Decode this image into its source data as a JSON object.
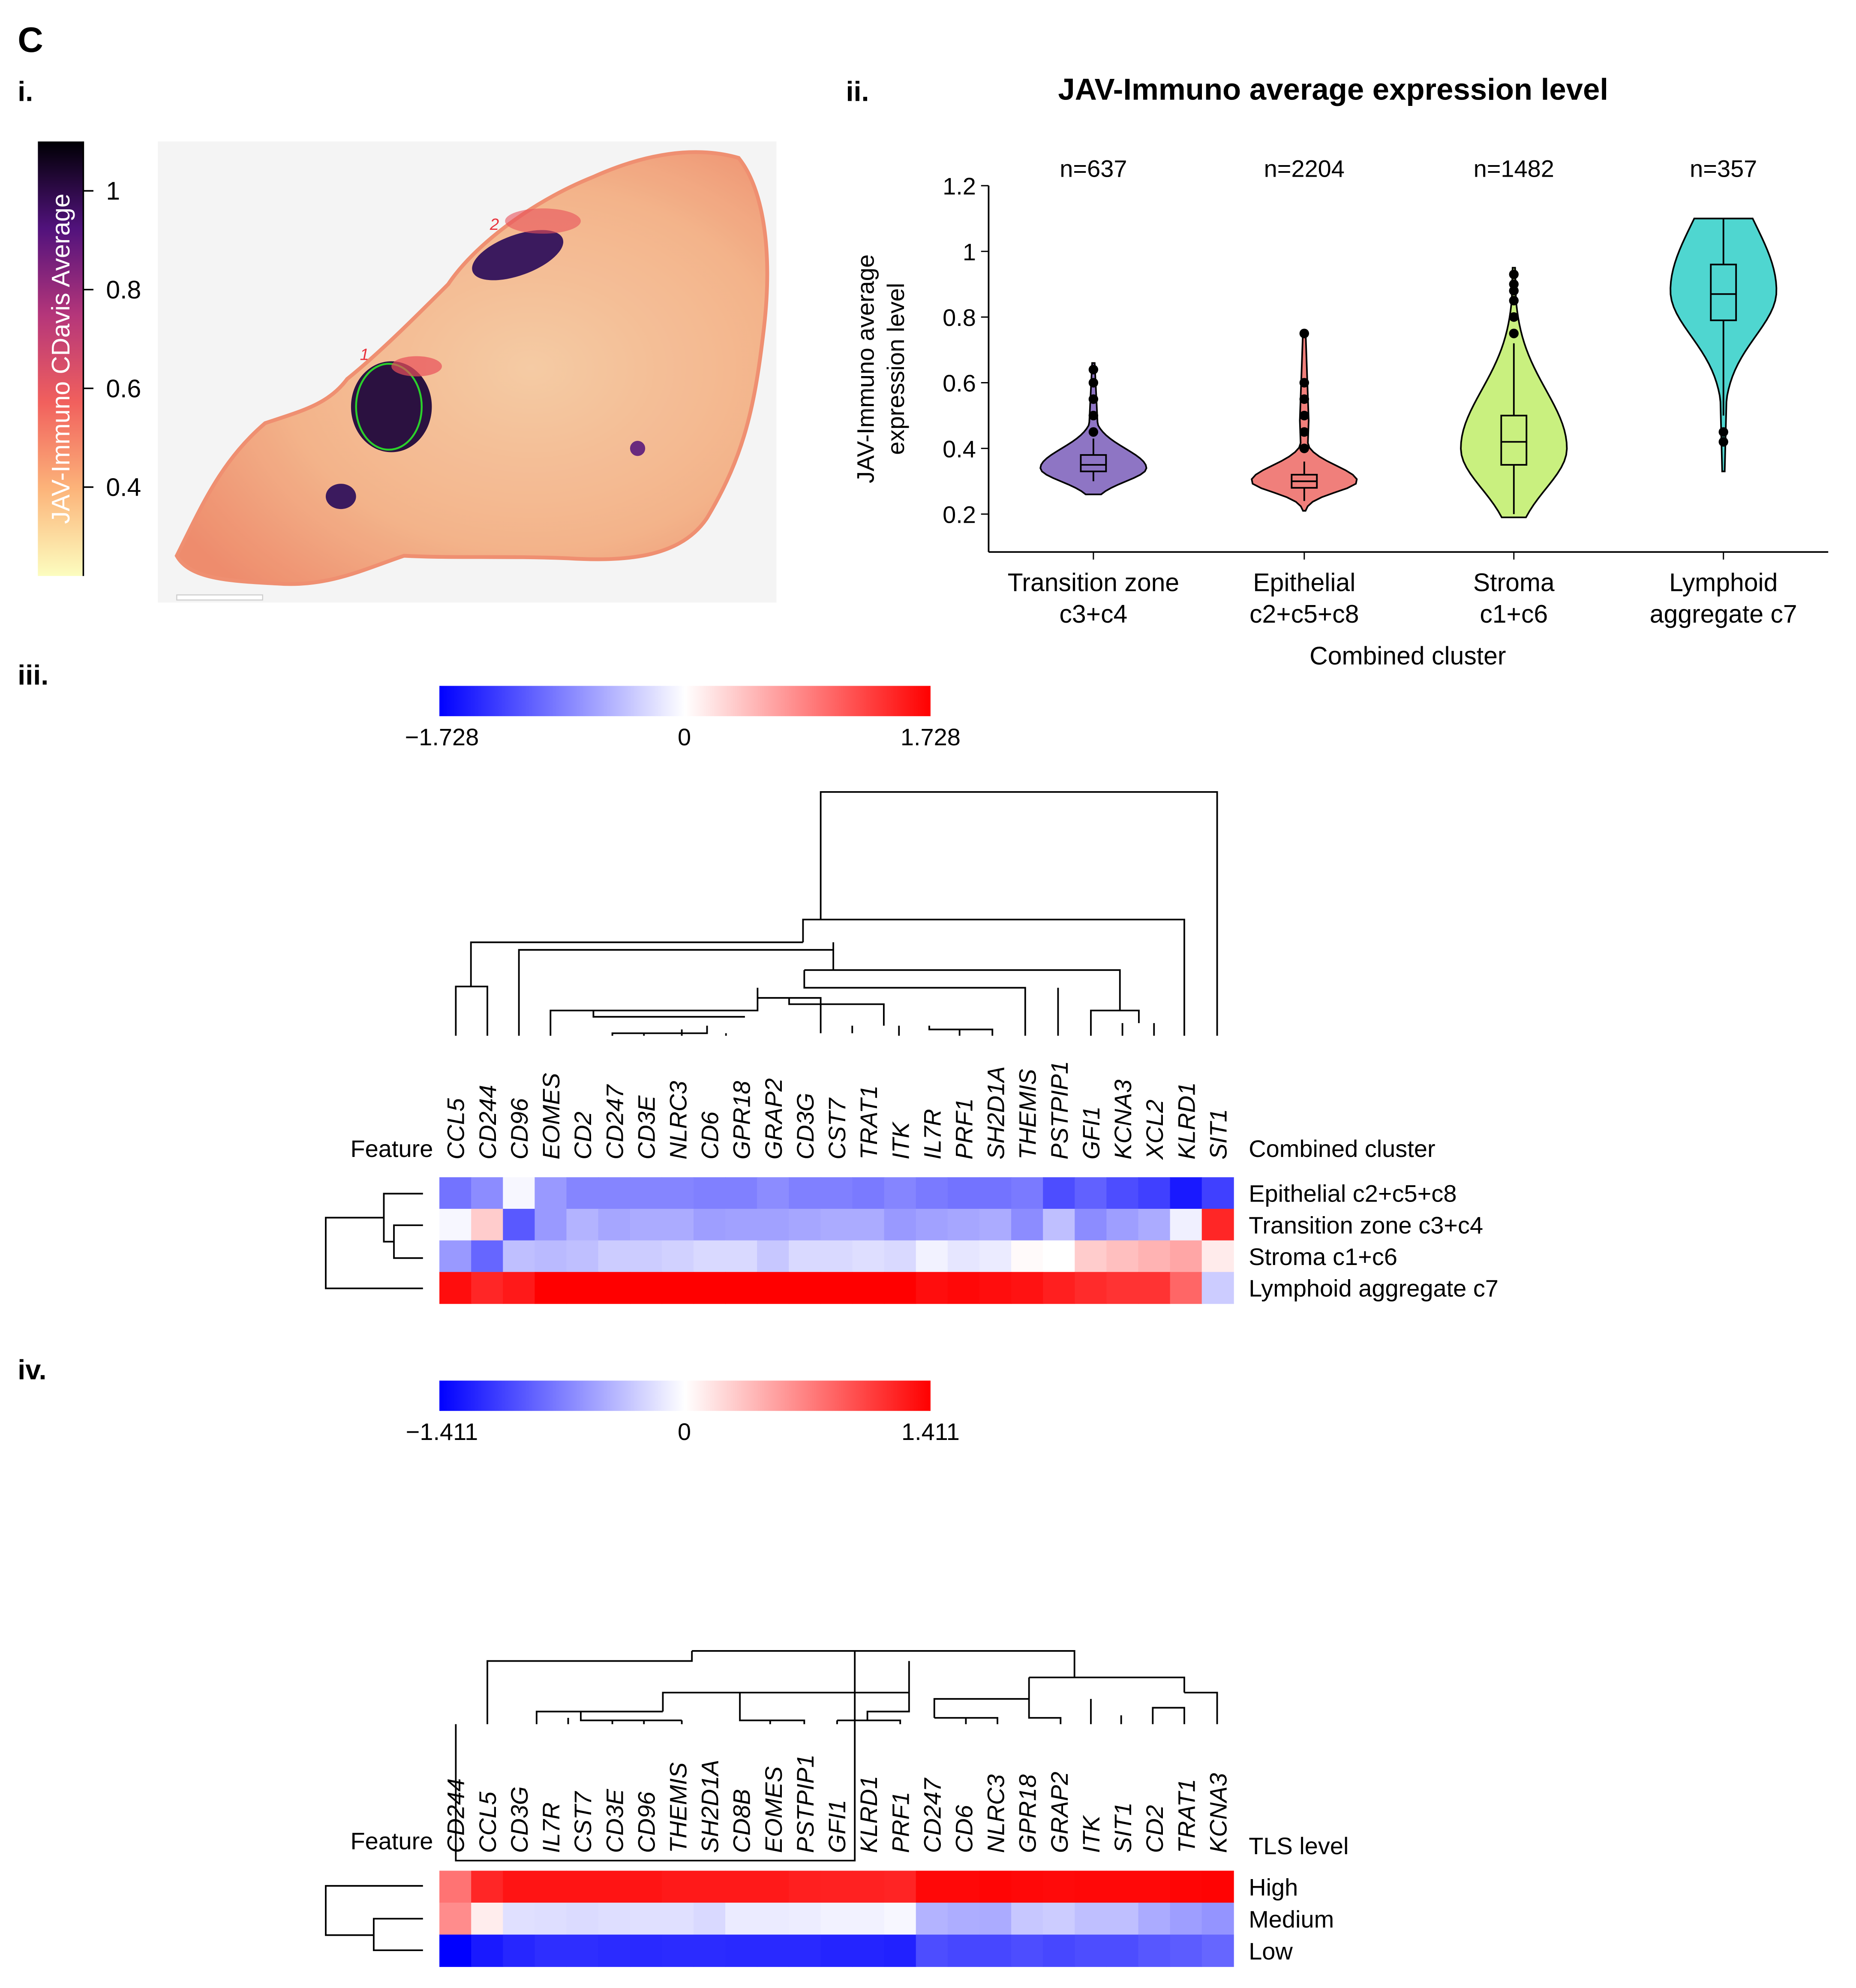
{
  "figure_label": "C",
  "panels": {
    "i": "i.",
    "ii": "ii.",
    "iii": "iii.",
    "iv": "iv."
  },
  "panel_i": {
    "colorbar_title": "JAV-Immuno CDavis Average",
    "colorbar_ticks": [
      "1",
      "0.8",
      "0.6",
      "0.4"
    ],
    "colorbar_tick_values": [
      1,
      0.8,
      0.6,
      0.4
    ],
    "colorbar_range": [
      0.22,
      1.1
    ],
    "annotations": [
      "1",
      "2"
    ],
    "colors": {
      "low": "#fcfdbf",
      "mid": "#f1605d",
      "high": "#000004",
      "roi_outline": "#2bd12b",
      "annotation": "#e8323c"
    }
  },
  "chart_data": [
    {
      "type": "violin",
      "title": "JAV-Immuno average expression level",
      "xlabel": "Combined cluster",
      "ylabel": [
        "JAV-Immuno average",
        "expression level"
      ],
      "ylim": [
        0.1,
        1.22
      ],
      "yticks": [
        0.2,
        0.4,
        0.6,
        0.8,
        1,
        1.2
      ],
      "ytick_labels": [
        "0.2",
        "0.4",
        "0.6",
        "0.8",
        "1",
        "1.2"
      ],
      "categories": [
        {
          "line1": "Transition zone",
          "line2": "c3+c4",
          "n": "n=637",
          "color": "#8e75c4",
          "min": 0.26,
          "q1": 0.33,
          "median": 0.35,
          "q3": 0.38,
          "max": 0.66,
          "whisker_low": 0.3,
          "whisker_high": 0.43,
          "mode": 0.34,
          "outliers": [
            0.45,
            0.5,
            0.55,
            0.6,
            0.64
          ]
        },
        {
          "line1": "Epithelial",
          "line2": "c2+c5+c8",
          "n": "n=2204",
          "color": "#f07f7b",
          "min": 0.21,
          "q1": 0.28,
          "median": 0.3,
          "q3": 0.32,
          "max": 0.76,
          "whisker_low": 0.24,
          "whisker_high": 0.36,
          "mode": 0.3,
          "outliers": [
            0.4,
            0.45,
            0.5,
            0.55,
            0.6,
            0.75
          ]
        },
        {
          "line1": "Stroma",
          "line2": "c1+c6",
          "n": "n=1482",
          "color": "#c9f07f",
          "min": 0.19,
          "q1": 0.35,
          "median": 0.42,
          "q3": 0.5,
          "max": 0.95,
          "whisker_low": 0.2,
          "whisker_high": 0.72,
          "mode": 0.4,
          "outliers": [
            0.75,
            0.8,
            0.85,
            0.88,
            0.9,
            0.93
          ]
        },
        {
          "line1": "Lymphoid",
          "line2": "aggregate c7",
          "n": "n=357",
          "color": "#4fd6d0",
          "min": 0.33,
          "q1": 0.79,
          "median": 0.87,
          "q3": 0.96,
          "max": 1.1,
          "whisker_low": 0.5,
          "whisker_high": 1.1,
          "mode": 0.88,
          "outliers": [
            0.42,
            0.45
          ]
        }
      ]
    },
    {
      "type": "heatmap",
      "colorbar": {
        "min_label": "−1.728",
        "mid_label": "0",
        "max_label": "1.728",
        "min_color": "#0000ff",
        "mid_color": "#ffffff",
        "max_color": "#ff0000"
      },
      "feature_label": "Feature",
      "group_label": "Combined cluster",
      "columns": [
        "CCL5",
        "CD244",
        "CD96",
        "EOMES",
        "CD2",
        "CD247",
        "CD3E",
        "NLRC3",
        "CD6",
        "GPR18",
        "GRAP2",
        "CD3G",
        "CST7",
        "TRAT1",
        "ITK",
        "IL7R",
        "PRF1",
        "SH2D1A",
        "THEMIS",
        "PSTPIP1",
        "GFI1",
        "KCNA3",
        "XCL2",
        "KLRD1",
        "SIT1"
      ],
      "rows": [
        "Epithelial c2+c5+c8",
        "Transition zone c3+c4",
        "Stroma c1+c6",
        "Lymphoid aggregate c7"
      ],
      "values_scaled": [
        [
          -0.55,
          -0.45,
          -0.03,
          -0.4,
          -0.48,
          -0.48,
          -0.48,
          -0.48,
          -0.5,
          -0.5,
          -0.45,
          -0.5,
          -0.5,
          -0.52,
          -0.48,
          -0.52,
          -0.55,
          -0.55,
          -0.52,
          -0.7,
          -0.62,
          -0.7,
          -0.75,
          -0.9,
          -0.75
        ],
        [
          -0.03,
          0.2,
          -0.65,
          -0.4,
          -0.3,
          -0.35,
          -0.33,
          -0.33,
          -0.38,
          -0.37,
          -0.37,
          -0.35,
          -0.33,
          -0.33,
          -0.4,
          -0.37,
          -0.35,
          -0.33,
          -0.45,
          -0.25,
          -0.45,
          -0.38,
          -0.33,
          -0.06,
          0.85
        ],
        [
          -0.4,
          -0.6,
          -0.25,
          -0.27,
          -0.25,
          -0.2,
          -0.2,
          -0.18,
          -0.15,
          -0.15,
          -0.22,
          -0.15,
          -0.15,
          -0.13,
          -0.15,
          -0.05,
          -0.1,
          -0.08,
          0.02,
          0,
          0.2,
          0.25,
          0.3,
          0.35,
          0.08
        ],
        [
          0.95,
          0.85,
          0.9,
          1,
          1,
          1,
          1,
          1,
          1,
          1,
          1,
          1,
          1,
          1,
          1,
          0.95,
          0.97,
          0.95,
          0.93,
          0.88,
          0.83,
          0.8,
          0.8,
          0.6,
          -0.2
        ]
      ]
    },
    {
      "type": "heatmap",
      "colorbar": {
        "min_label": "−1.411",
        "mid_label": "0",
        "max_label": "1.411",
        "min_color": "#0000ff",
        "mid_color": "#ffffff",
        "max_color": "#ff0000"
      },
      "feature_label": "Feature",
      "group_label": "TLS level",
      "columns": [
        "CD244",
        "CCL5",
        "CD3G",
        "IL7R",
        "CST7",
        "CD3E",
        "CD96",
        "THEMIS",
        "SH2D1A",
        "CD8B",
        "EOMES",
        "PSTPIP1",
        "GFI1",
        "KLRD1",
        "PRF1",
        "CD247",
        "CD6",
        "NLRC3",
        "GPR18",
        "GRAP2",
        "ITK",
        "SIT1",
        "CD2",
        "TRAT1",
        "KCNA3"
      ],
      "rows": [
        "High",
        "Medium",
        "Low"
      ],
      "values_scaled": [
        [
          0.55,
          0.85,
          0.92,
          0.92,
          0.92,
          0.92,
          0.92,
          0.9,
          0.9,
          0.9,
          0.9,
          0.88,
          0.87,
          0.87,
          0.86,
          0.97,
          0.97,
          0.98,
          0.97,
          0.96,
          0.97,
          0.97,
          0.97,
          0.98,
          0.99
        ],
        [
          0.45,
          0.07,
          -0.12,
          -0.13,
          -0.14,
          -0.13,
          -0.12,
          -0.12,
          -0.15,
          -0.08,
          -0.08,
          -0.07,
          -0.05,
          -0.05,
          -0.03,
          -0.3,
          -0.32,
          -0.33,
          -0.22,
          -0.2,
          -0.25,
          -0.25,
          -0.33,
          -0.38,
          -0.42
        ],
        [
          -1,
          -0.9,
          -0.85,
          -0.82,
          -0.82,
          -0.83,
          -0.84,
          -0.83,
          -0.83,
          -0.84,
          -0.84,
          -0.84,
          -0.86,
          -0.86,
          -0.87,
          -0.7,
          -0.72,
          -0.72,
          -0.7,
          -0.72,
          -0.7,
          -0.7,
          -0.66,
          -0.64,
          -0.6
        ]
      ]
    }
  ]
}
